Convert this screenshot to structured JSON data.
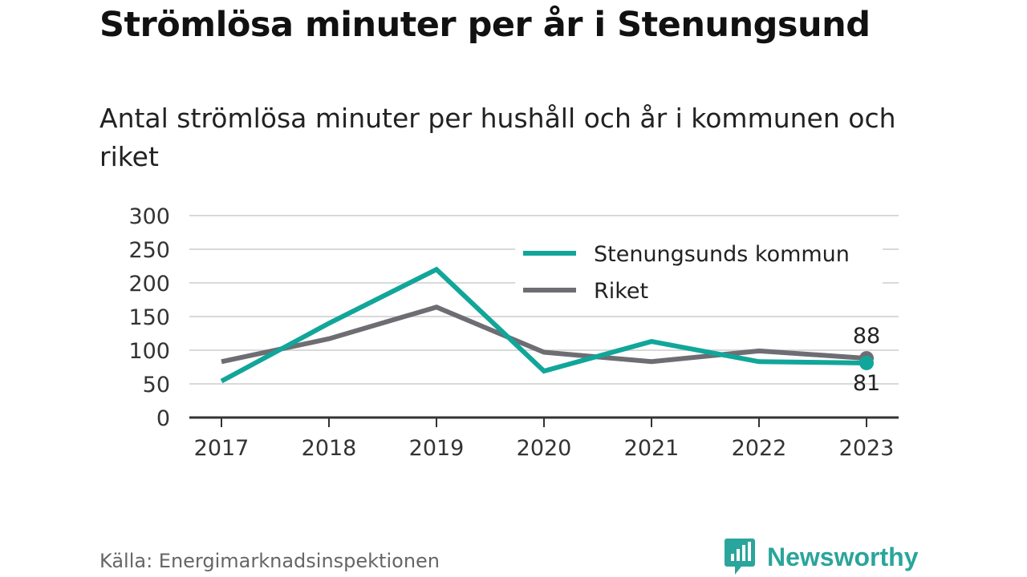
{
  "header": {
    "title": "Strömlösa minuter per år i Stenungsund",
    "subtitle": "Antal strömlösa minuter per hushåll och år i kommunen och riket"
  },
  "footer": {
    "source": "Källa: Energimarknadsinspektionen",
    "brand": "Newsworthy"
  },
  "chart_data": {
    "type": "line",
    "title": "Strömlösa minuter per år i Stenungsund",
    "subtitle": "Antal strömlösa minuter per hushåll och år i kommunen och riket",
    "xlabel": "",
    "ylabel": "",
    "categories": [
      "2017",
      "2018",
      "2019",
      "2020",
      "2021",
      "2022",
      "2023"
    ],
    "y_ticks": [
      0,
      50,
      100,
      150,
      200,
      250,
      300
    ],
    "ylim": [
      0,
      300
    ],
    "grid": true,
    "legend_position": "top-right",
    "series": [
      {
        "name": "Stenungsunds kommun",
        "color": "#11a699",
        "values": [
          54,
          140,
          220,
          69,
          113,
          83,
          81
        ],
        "end_label": "81"
      },
      {
        "name": "Riket",
        "color": "#6e6d73",
        "values": [
          83,
          117,
          164,
          97,
          83,
          99,
          88
        ],
        "end_label": "88"
      }
    ]
  },
  "colors": {
    "brand": "#2aa59b",
    "grid": "#d9d9d9",
    "axis": "#333333"
  }
}
